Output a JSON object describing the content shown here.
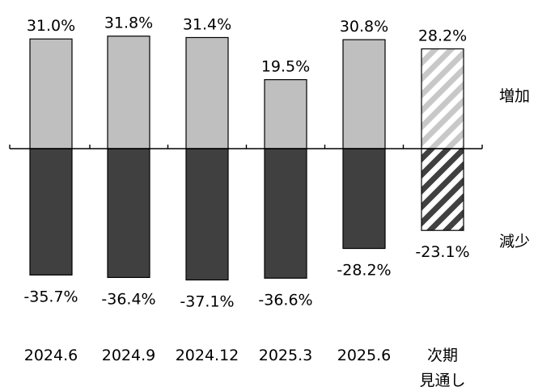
{
  "chart_data": {
    "type": "bar",
    "title": "",
    "xlabel": "",
    "ylabel": "",
    "ylim": [
      -45,
      40
    ],
    "categories": [
      [
        "2024.6"
      ],
      [
        "2024.9"
      ],
      [
        "2024.12"
      ],
      [
        "2025.3"
      ],
      [
        "2025.6"
      ],
      [
        "次期",
        "見通し"
      ]
    ],
    "series": [
      {
        "name": "増加",
        "values": [
          31.0,
          31.8,
          31.4,
          19.5,
          30.8,
          28.2
        ],
        "labels": [
          "31.0%",
          "31.8%",
          "31.4%",
          "19.5%",
          "30.8%",
          "28.2%"
        ],
        "color": "#bfbfbf",
        "forecast_color": "#bfbfbf"
      },
      {
        "name": "減少",
        "values": [
          -35.7,
          -36.4,
          -37.1,
          -36.6,
          -28.2,
          -23.1
        ],
        "labels": [
          "-35.7%",
          "-36.4%",
          "-37.1%",
          "-36.6%",
          "-28.2%",
          "-23.1%"
        ],
        "color": "#404040",
        "forecast_color": "#404040"
      }
    ],
    "forecast_index": 5,
    "legend": "right",
    "grid": false
  }
}
